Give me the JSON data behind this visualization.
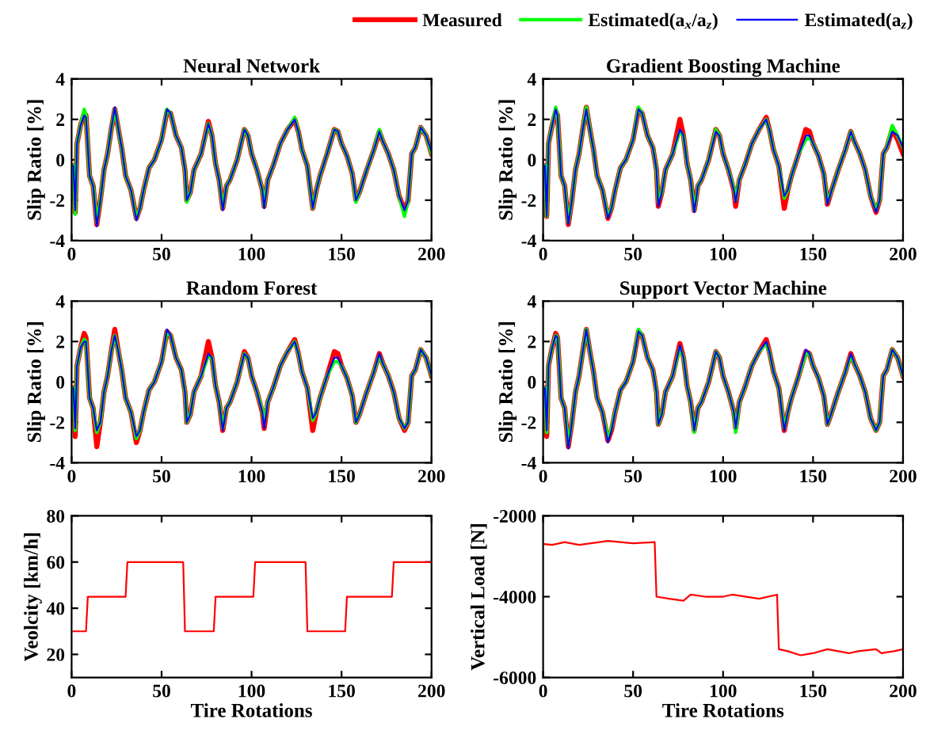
{
  "chart_data": [
    {
      "type": "line",
      "title": "Neural Network",
      "ylabel": "Slip Ratio [%]",
      "xlim": [
        0,
        200
      ],
      "ylim": [
        -4,
        4
      ],
      "xticks": [
        0,
        50,
        100,
        150,
        200
      ],
      "yticks": [
        -4,
        -2,
        0,
        2,
        4
      ],
      "legend": "top right",
      "line_style": "solid",
      "x": [
        1,
        2,
        3,
        5,
        7,
        8,
        10,
        12,
        14,
        16,
        18,
        20,
        22,
        24,
        26,
        28,
        30,
        33,
        36,
        38,
        40,
        43,
        46,
        50,
        53,
        55,
        58,
        61,
        63,
        64,
        66,
        68,
        72,
        76,
        78,
        80,
        82,
        84,
        86,
        88,
        92,
        96,
        98,
        100,
        103,
        106,
        107,
        109,
        112,
        116,
        120,
        124,
        126,
        128,
        131,
        134,
        136,
        138,
        142,
        146,
        148,
        150,
        153,
        156,
        158,
        160,
        164,
        168,
        171,
        173,
        176,
        179,
        182,
        185,
        187,
        189,
        191,
        194,
        197,
        200
      ],
      "series": [
        {
          "name": "Measured",
          "color": "#ff0000",
          "values": [
            -0.3,
            -2.6,
            0.8,
            1.7,
            2.3,
            2.2,
            -0.8,
            -1.3,
            -3.2,
            -2.0,
            -0.5,
            0.3,
            1.5,
            2.5,
            1.5,
            0.5,
            -0.8,
            -1.5,
            -2.9,
            -2.4,
            -1.5,
            -0.4,
            0.0,
            1.0,
            2.4,
            2.3,
            1.2,
            0.6,
            -0.5,
            -2.0,
            -1.6,
            -0.5,
            0.3,
            1.9,
            1.2,
            -0.2,
            -1.0,
            -2.4,
            -1.3,
            -1.0,
            0.0,
            1.5,
            1.2,
            0.3,
            -0.5,
            -1.5,
            -2.3,
            -1.0,
            -0.3,
            0.8,
            1.5,
            2.0,
            1.4,
            0.5,
            -0.3,
            -2.4,
            -1.5,
            -0.8,
            0.3,
            1.5,
            1.4,
            0.8,
            0.2,
            -0.7,
            -2.0,
            -1.6,
            -0.5,
            0.5,
            1.4,
            0.9,
            0.3,
            -0.5,
            -1.8,
            -2.5,
            -2.0,
            0.3,
            0.6,
            1.6,
            1.2,
            0.3
          ]
        },
        {
          "name": "Estimated(a$_{x}$/a$_{z}$)",
          "color": "#00ff00",
          "values": [
            -0.3,
            -2.7,
            0.8,
            1.7,
            2.5,
            2.2,
            -0.8,
            -1.3,
            -3.1,
            -2.0,
            -0.5,
            0.3,
            1.5,
            2.5,
            1.5,
            0.5,
            -0.8,
            -1.5,
            -2.9,
            -2.4,
            -1.5,
            -0.4,
            0.0,
            1.0,
            2.5,
            2.3,
            1.2,
            0.6,
            -0.5,
            -2.1,
            -1.6,
            -0.5,
            0.3,
            1.8,
            1.2,
            -0.2,
            -1.0,
            -2.4,
            -1.3,
            -1.0,
            0.0,
            1.5,
            1.2,
            0.3,
            -0.5,
            -1.5,
            -2.3,
            -1.0,
            -0.3,
            0.8,
            1.5,
            2.1,
            1.4,
            0.5,
            -0.3,
            -2.4,
            -1.5,
            -0.8,
            0.3,
            1.5,
            1.4,
            0.8,
            0.2,
            -0.7,
            -2.1,
            -1.6,
            -0.5,
            0.5,
            1.5,
            0.9,
            0.3,
            -0.5,
            -1.8,
            -2.8,
            -2.0,
            0.3,
            0.6,
            1.6,
            1.2,
            0.3
          ]
        },
        {
          "name": "Estimated(a$_{z}$)",
          "color": "#0000ff",
          "values": [
            -0.3,
            -2.5,
            0.8,
            1.7,
            2.2,
            2.1,
            -0.8,
            -1.3,
            -3.3,
            -2.0,
            -0.5,
            0.3,
            1.5,
            2.6,
            1.5,
            0.5,
            -0.8,
            -1.5,
            -3.0,
            -2.4,
            -1.5,
            -0.4,
            0.0,
            1.0,
            2.5,
            2.3,
            1.2,
            0.6,
            -0.5,
            -2.0,
            -1.6,
            -0.5,
            0.3,
            1.8,
            1.2,
            -0.2,
            -1.0,
            -2.5,
            -1.3,
            -1.0,
            0.0,
            1.5,
            1.2,
            0.3,
            -0.5,
            -1.5,
            -2.4,
            -1.0,
            -0.3,
            0.8,
            1.5,
            2.0,
            1.4,
            0.5,
            -0.3,
            -2.4,
            -1.5,
            -0.8,
            0.3,
            1.5,
            1.4,
            0.8,
            0.2,
            -0.7,
            -2.0,
            -1.6,
            -0.5,
            0.5,
            1.4,
            0.9,
            0.3,
            -0.5,
            -1.8,
            -2.5,
            -2.0,
            0.3,
            0.6,
            1.6,
            1.2,
            0.4
          ]
        }
      ]
    },
    {
      "type": "line",
      "title": "Gradient Boosting Machine",
      "ylabel": "Slip Ratio [%]",
      "xlim": [
        0,
        200
      ],
      "ylim": [
        -4,
        4
      ],
      "xticks": [
        0,
        50,
        100,
        150,
        200
      ],
      "yticks": [
        -4,
        -2,
        0,
        2,
        4
      ],
      "line_style": "solid",
      "x": [
        1,
        2,
        3,
        5,
        7,
        8,
        10,
        12,
        14,
        16,
        18,
        20,
        22,
        24,
        26,
        28,
        30,
        33,
        36,
        38,
        40,
        43,
        46,
        50,
        53,
        55,
        58,
        61,
        63,
        64,
        66,
        68,
        72,
        76,
        78,
        80,
        82,
        84,
        86,
        88,
        92,
        96,
        98,
        100,
        103,
        106,
        107,
        109,
        112,
        116,
        120,
        124,
        126,
        128,
        131,
        134,
        136,
        138,
        142,
        146,
        148,
        150,
        153,
        156,
        158,
        160,
        164,
        168,
        171,
        173,
        176,
        179,
        182,
        185,
        187,
        189,
        191,
        194,
        197,
        200
      ],
      "series": [
        {
          "color": "#ff0000",
          "values": [
            -0.3,
            -2.8,
            0.8,
            1.7,
            2.4,
            2.2,
            -0.8,
            -1.3,
            -3.2,
            -2.0,
            -0.5,
            0.3,
            1.5,
            2.6,
            1.5,
            0.5,
            -0.8,
            -1.5,
            -2.9,
            -2.4,
            -1.5,
            -0.4,
            0.0,
            1.0,
            2.5,
            2.3,
            1.2,
            0.6,
            -0.5,
            -2.3,
            -1.6,
            -0.5,
            0.3,
            2.0,
            1.2,
            -0.2,
            -1.0,
            -2.5,
            -1.3,
            -1.0,
            0.0,
            1.5,
            1.2,
            0.3,
            -0.5,
            -1.5,
            -2.3,
            -1.0,
            -0.3,
            0.8,
            1.5,
            2.1,
            1.4,
            0.5,
            -0.3,
            -2.4,
            -1.5,
            -0.8,
            0.3,
            1.5,
            1.4,
            0.8,
            0.2,
            -0.7,
            -2.2,
            -1.6,
            -0.5,
            0.5,
            1.4,
            0.9,
            0.3,
            -0.5,
            -1.8,
            -2.6,
            -2.0,
            0.3,
            0.6,
            1.5,
            1.0,
            0.3
          ]
        },
        {
          "color": "#00ff00",
          "values": [
            -0.3,
            -2.8,
            0.8,
            1.7,
            2.6,
            2.2,
            -0.8,
            -1.3,
            -3.1,
            -2.0,
            -0.5,
            0.3,
            1.5,
            2.6,
            1.5,
            0.5,
            -0.8,
            -1.5,
            -2.8,
            -2.4,
            -1.5,
            -0.4,
            0.0,
            1.0,
            2.6,
            2.3,
            1.2,
            0.6,
            -0.5,
            -2.1,
            -1.6,
            -0.5,
            0.3,
            1.4,
            1.2,
            -0.2,
            -1.0,
            -2.5,
            -1.3,
            -1.0,
            0.0,
            1.5,
            1.2,
            0.3,
            -0.5,
            -1.4,
            -2.0,
            -1.0,
            -0.3,
            0.8,
            1.5,
            2.0,
            1.4,
            0.5,
            -0.3,
            -1.9,
            -1.5,
            -0.8,
            0.3,
            1.0,
            1.1,
            0.8,
            0.2,
            -0.7,
            -2.1,
            -1.6,
            -0.5,
            0.5,
            1.4,
            0.9,
            0.3,
            -0.5,
            -1.8,
            -2.5,
            -2.0,
            0.3,
            0.6,
            1.7,
            1.2,
            0.6
          ]
        },
        {
          "color": "#0000ff",
          "values": [
            -0.3,
            -2.8,
            0.8,
            1.7,
            2.5,
            2.2,
            -0.8,
            -1.3,
            -3.2,
            -2.0,
            -0.5,
            0.3,
            1.5,
            2.5,
            1.5,
            0.5,
            -0.8,
            -1.5,
            -2.9,
            -2.4,
            -1.5,
            -0.4,
            0.0,
            1.0,
            2.5,
            2.3,
            1.2,
            0.6,
            -0.5,
            -2.3,
            -1.6,
            -0.5,
            0.3,
            1.5,
            1.2,
            -0.2,
            -1.0,
            -2.6,
            -1.3,
            -1.0,
            0.0,
            1.4,
            1.2,
            0.3,
            -0.5,
            -1.5,
            -2.1,
            -1.0,
            -0.3,
            0.8,
            1.5,
            2.0,
            1.4,
            0.5,
            -0.3,
            -1.8,
            -1.5,
            -0.8,
            0.3,
            1.2,
            1.2,
            0.8,
            0.2,
            -0.7,
            -2.2,
            -1.6,
            -0.5,
            0.5,
            1.4,
            0.9,
            0.3,
            -0.5,
            -1.8,
            -2.6,
            -2.0,
            0.3,
            0.6,
            1.4,
            1.2,
            0.6
          ]
        }
      ]
    },
    {
      "type": "line",
      "title": "Random Forest",
      "ylabel": "Slip Ratio [%]",
      "xlim": [
        0,
        200
      ],
      "ylim": [
        -4,
        4
      ],
      "xticks": [
        0,
        50,
        100,
        150,
        200
      ],
      "yticks": [
        -4,
        -2,
        0,
        2,
        4
      ],
      "line_style": "solid",
      "x": [
        1,
        2,
        3,
        5,
        7,
        8,
        10,
        12,
        14,
        16,
        18,
        20,
        22,
        24,
        26,
        28,
        30,
        33,
        36,
        38,
        40,
        43,
        46,
        50,
        53,
        55,
        58,
        61,
        63,
        64,
        66,
        68,
        72,
        76,
        78,
        80,
        82,
        84,
        86,
        88,
        92,
        96,
        98,
        100,
        103,
        106,
        107,
        109,
        112,
        116,
        120,
        124,
        126,
        128,
        131,
        134,
        136,
        138,
        142,
        146,
        148,
        150,
        153,
        156,
        158,
        160,
        164,
        168,
        171,
        173,
        176,
        179,
        182,
        185,
        187,
        189,
        191,
        194,
        197,
        200
      ],
      "series": [
        {
          "color": "#ff0000",
          "values": [
            -0.3,
            -2.7,
            0.8,
            1.7,
            2.4,
            2.2,
            -0.8,
            -1.3,
            -3.2,
            -2.0,
            -0.5,
            0.3,
            1.5,
            2.6,
            1.5,
            0.5,
            -0.8,
            -1.5,
            -3.0,
            -2.4,
            -1.5,
            -0.4,
            0.0,
            1.0,
            2.5,
            2.3,
            1.2,
            0.6,
            -0.5,
            -2.0,
            -1.6,
            -0.5,
            0.3,
            2.0,
            1.2,
            -0.2,
            -1.0,
            -2.4,
            -1.3,
            -1.0,
            0.0,
            1.5,
            1.2,
            0.3,
            -0.5,
            -1.5,
            -2.3,
            -1.0,
            -0.3,
            0.8,
            1.5,
            2.1,
            1.4,
            0.5,
            -0.3,
            -2.4,
            -1.5,
            -0.8,
            0.3,
            1.5,
            1.4,
            0.8,
            0.2,
            -0.7,
            -2.0,
            -1.6,
            -0.5,
            0.5,
            1.4,
            0.9,
            0.3,
            -0.5,
            -1.8,
            -2.4,
            -2.0,
            0.3,
            0.6,
            1.6,
            1.2,
            0.3
          ]
        },
        {
          "color": "#00ff00",
          "values": [
            -0.3,
            -2.4,
            0.8,
            1.7,
            2.1,
            2.0,
            -0.8,
            -1.3,
            -2.5,
            -2.0,
            -0.5,
            0.3,
            1.5,
            2.3,
            1.5,
            0.5,
            -0.8,
            -1.5,
            -2.8,
            -2.4,
            -1.5,
            -0.4,
            0.0,
            1.0,
            2.5,
            2.3,
            1.2,
            0.6,
            -0.5,
            -2.0,
            -1.6,
            -0.5,
            0.3,
            1.3,
            1.2,
            -0.2,
            -1.0,
            -2.3,
            -1.3,
            -1.0,
            0.0,
            1.4,
            1.2,
            0.3,
            -0.5,
            -1.4,
            -2.0,
            -1.0,
            -0.3,
            0.8,
            1.5,
            2.0,
            1.4,
            0.5,
            -0.3,
            -1.9,
            -1.5,
            -0.8,
            0.3,
            1.0,
            1.0,
            0.8,
            0.2,
            -0.7,
            -2.0,
            -1.6,
            -0.5,
            0.5,
            1.3,
            0.9,
            0.3,
            -0.5,
            -1.8,
            -2.3,
            -2.0,
            0.3,
            0.6,
            1.6,
            1.2,
            0.3
          ]
        },
        {
          "color": "#0000ff",
          "values": [
            -0.3,
            -2.3,
            0.8,
            1.7,
            2.0,
            2.0,
            -0.8,
            -1.3,
            -2.4,
            -2.0,
            -0.5,
            0.3,
            1.5,
            2.3,
            1.5,
            0.5,
            -0.8,
            -1.5,
            -2.7,
            -2.4,
            -1.5,
            -0.4,
            0.0,
            1.0,
            2.6,
            2.3,
            1.2,
            0.6,
            -0.5,
            -2.0,
            -1.6,
            -0.5,
            0.3,
            1.4,
            1.2,
            -0.2,
            -1.0,
            -2.4,
            -1.3,
            -1.0,
            0.0,
            1.4,
            1.2,
            0.3,
            -0.5,
            -1.5,
            -2.3,
            -1.0,
            -0.3,
            0.8,
            1.5,
            2.0,
            1.4,
            0.5,
            -0.3,
            -1.8,
            -1.5,
            -0.8,
            0.3,
            1.2,
            1.2,
            0.8,
            0.2,
            -0.7,
            -2.0,
            -1.6,
            -0.5,
            0.5,
            1.4,
            0.9,
            0.3,
            -0.5,
            -1.8,
            -2.3,
            -2.0,
            0.3,
            0.6,
            1.6,
            1.2,
            0.3
          ]
        }
      ]
    },
    {
      "type": "line",
      "title": "Support Vector Machine",
      "ylabel": "Slip Ratio [%]",
      "xlim": [
        0,
        200
      ],
      "ylim": [
        -4,
        4
      ],
      "xticks": [
        0,
        50,
        100,
        150,
        200
      ],
      "yticks": [
        -4,
        -2,
        0,
        2,
        4
      ],
      "line_style": "solid",
      "x": [
        1,
        2,
        3,
        5,
        7,
        8,
        10,
        12,
        14,
        16,
        18,
        20,
        22,
        24,
        26,
        28,
        30,
        33,
        36,
        38,
        40,
        43,
        46,
        50,
        53,
        55,
        58,
        61,
        63,
        64,
        66,
        68,
        72,
        76,
        78,
        80,
        82,
        84,
        86,
        88,
        92,
        96,
        98,
        100,
        103,
        106,
        107,
        109,
        112,
        116,
        120,
        124,
        126,
        128,
        131,
        134,
        136,
        138,
        142,
        146,
        148,
        150,
        153,
        156,
        158,
        160,
        164,
        168,
        171,
        173,
        176,
        179,
        182,
        185,
        187,
        189,
        191,
        194,
        197,
        200
      ],
      "series": [
        {
          "color": "#ff0000",
          "values": [
            -0.3,
            -2.7,
            0.8,
            1.7,
            2.4,
            2.2,
            -0.8,
            -1.3,
            -3.2,
            -2.0,
            -0.5,
            0.3,
            1.5,
            2.6,
            1.5,
            0.5,
            -0.8,
            -1.5,
            -2.9,
            -2.4,
            -1.5,
            -0.4,
            0.0,
            1.0,
            2.5,
            2.3,
            1.2,
            0.6,
            -0.5,
            -2.1,
            -1.6,
            -0.5,
            0.3,
            1.9,
            1.2,
            -0.2,
            -1.0,
            -2.4,
            -1.3,
            -1.0,
            0.0,
            1.5,
            1.2,
            0.3,
            -0.5,
            -1.5,
            -2.3,
            -1.0,
            -0.3,
            0.8,
            1.5,
            2.1,
            1.4,
            0.5,
            -0.3,
            -2.4,
            -1.5,
            -0.8,
            0.3,
            1.5,
            1.4,
            0.8,
            0.2,
            -0.7,
            -2.1,
            -1.6,
            -0.5,
            0.5,
            1.4,
            0.9,
            0.3,
            -0.5,
            -1.8,
            -2.4,
            -2.0,
            0.3,
            0.6,
            1.6,
            1.2,
            0.3
          ]
        },
        {
          "color": "#00ff00",
          "values": [
            -0.3,
            -2.5,
            0.8,
            1.7,
            2.3,
            2.2,
            -0.8,
            -1.3,
            -3.1,
            -2.0,
            -0.5,
            0.3,
            1.5,
            2.6,
            1.5,
            0.5,
            -0.8,
            -1.5,
            -2.8,
            -2.3,
            -1.5,
            -0.4,
            0.0,
            1.0,
            2.6,
            2.3,
            1.2,
            0.6,
            -0.5,
            -2.1,
            -1.6,
            -0.5,
            0.3,
            1.7,
            1.2,
            -0.2,
            -1.0,
            -2.5,
            -1.3,
            -1.0,
            0.0,
            1.5,
            1.2,
            0.3,
            -0.5,
            -1.5,
            -2.5,
            -1.0,
            -0.3,
            0.8,
            1.5,
            1.9,
            1.4,
            0.5,
            -0.3,
            -2.3,
            -1.5,
            -0.8,
            0.3,
            1.4,
            1.4,
            0.8,
            0.2,
            -0.7,
            -2.1,
            -1.6,
            -0.5,
            0.5,
            1.3,
            0.9,
            0.3,
            -0.5,
            -1.8,
            -2.4,
            -2.0,
            0.3,
            0.6,
            1.6,
            1.2,
            0.3
          ]
        },
        {
          "color": "#0000ff",
          "values": [
            -0.3,
            -2.4,
            0.8,
            1.7,
            2.3,
            2.2,
            -0.8,
            -1.3,
            -3.3,
            -2.0,
            -0.5,
            0.3,
            1.5,
            2.6,
            1.5,
            0.5,
            -0.8,
            -1.5,
            -3.0,
            -2.4,
            -1.5,
            -0.4,
            0.0,
            1.0,
            2.5,
            2.3,
            1.2,
            0.6,
            -0.5,
            -2.1,
            -1.6,
            -0.5,
            0.3,
            1.8,
            1.2,
            -0.2,
            -1.0,
            -2.4,
            -1.3,
            -1.0,
            0.0,
            1.5,
            1.2,
            0.3,
            -0.5,
            -1.5,
            -2.3,
            -1.0,
            -0.3,
            0.8,
            1.5,
            2.0,
            1.4,
            0.5,
            -0.3,
            -2.4,
            -1.5,
            -0.8,
            0.3,
            1.6,
            1.4,
            0.8,
            0.2,
            -0.7,
            -2.1,
            -1.6,
            -0.5,
            0.5,
            1.4,
            0.9,
            0.3,
            -0.5,
            -1.8,
            -2.4,
            -2.0,
            0.3,
            0.6,
            1.6,
            1.2,
            0.3
          ]
        }
      ]
    },
    {
      "type": "line",
      "ylabel": "Veolcity [km/h]",
      "xlabel": "Tire Rotations",
      "xlim": [
        0,
        200
      ],
      "ylim": [
        10,
        80
      ],
      "xticks": [
        0,
        50,
        100,
        150,
        200
      ],
      "yticks": [
        20,
        40,
        60,
        80
      ],
      "line_style": "solid",
      "x": [
        1,
        8,
        9,
        30,
        31,
        62,
        63,
        79,
        80,
        101,
        102,
        130,
        131,
        152,
        153,
        178,
        179,
        200
      ],
      "series": [
        {
          "color": "#ff0000",
          "values": [
            30,
            30,
            45,
            45,
            60,
            60,
            30,
            30,
            45,
            45,
            60,
            60,
            30,
            30,
            45,
            45,
            60,
            60
          ]
        }
      ]
    },
    {
      "type": "line",
      "ylabel": "Vertical Load [N]",
      "xlabel": "Tire Rotations",
      "xlim": [
        0,
        200
      ],
      "ylim": [
        -6000,
        -2000
      ],
      "xticks": [
        0,
        50,
        100,
        150,
        200
      ],
      "yticks": [
        -6000,
        -4000,
        -2000
      ],
      "line_style": "solid",
      "x": [
        1,
        5,
        12,
        20,
        36,
        50,
        62,
        63,
        70,
        78,
        82,
        90,
        100,
        105,
        120,
        130,
        131,
        136,
        143,
        150,
        158,
        170,
        175,
        185,
        188,
        195,
        200
      ],
      "series": [
        {
          "color": "#ff0000",
          "values": [
            -2700,
            -2720,
            -2650,
            -2720,
            -2620,
            -2680,
            -2650,
            -4000,
            -4050,
            -4100,
            -3950,
            -4000,
            -4000,
            -3950,
            -4050,
            -3950,
            -5300,
            -5350,
            -5450,
            -5400,
            -5300,
            -5400,
            -5350,
            -5300,
            -5400,
            -5350,
            -5300
          ]
        }
      ]
    }
  ]
}
